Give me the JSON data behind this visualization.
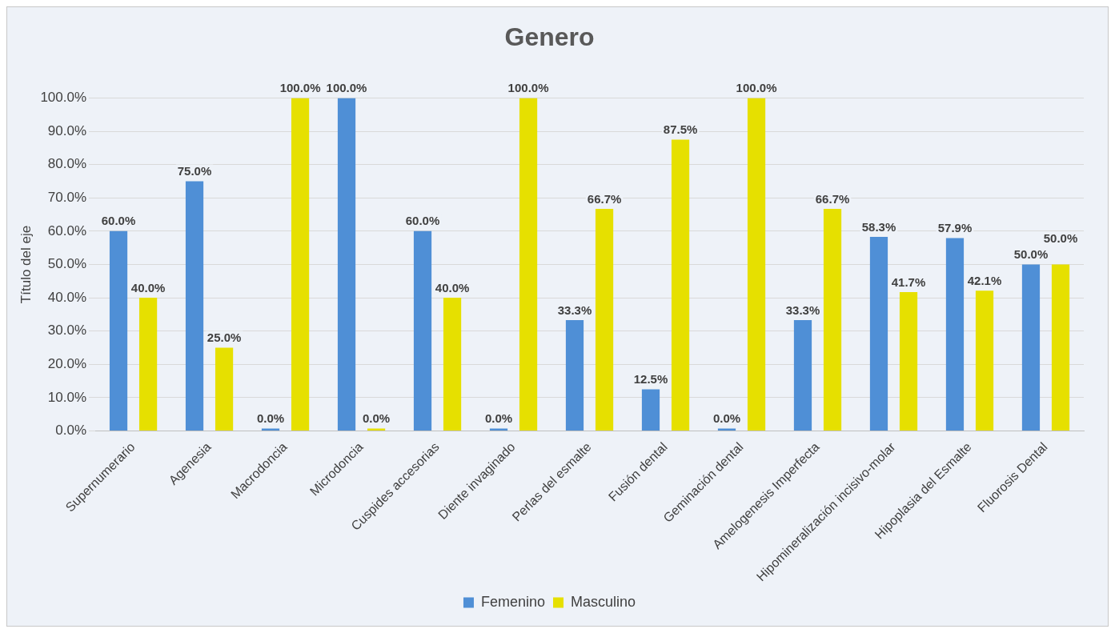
{
  "chart_data": {
    "type": "bar",
    "title": "Genero",
    "ylabel": "Título del eje",
    "categories": [
      "Supernumerario",
      "Agenesia",
      "Macrodoncia",
      "Microdoncia",
      "Cuspides accesorias",
      "Diente invaginado",
      "Perlas del esmalte",
      "Fusión dental",
      "Geminación dental",
      "Amelogenesis Imperfecta",
      "Hipomineralización incisivo-molar",
      "Hipoplasia del Esmalte",
      "Fluorosis Dental"
    ],
    "series": [
      {
        "name": "Femenino",
        "color": "#4f8fd6",
        "values": [
          60,
          75,
          0,
          100,
          60,
          0,
          33.3,
          12.5,
          0,
          33.3,
          58.3,
          57.9,
          50
        ],
        "value_labels": [
          "60.0%",
          "75.0%",
          "0.0%",
          "100.0%",
          "60.0%",
          "0.0%",
          "33.3%",
          "12.5%",
          "0.0%",
          "33.3%",
          "58.3%",
          "57.9%",
          "50.0%"
        ]
      },
      {
        "name": "Masculino",
        "color": "#e6e000",
        "values": [
          40,
          25,
          100,
          0,
          40,
          100,
          66.7,
          87.5,
          100,
          66.7,
          41.7,
          42.1,
          50
        ],
        "value_labels": [
          "40.0%",
          "25.0%",
          "100.0%",
          "0.0%",
          "40.0%",
          "100.0%",
          "66.7%",
          "87.5%",
          "100.0%",
          "66.7%",
          "41.7%",
          "42.1%",
          "50.0%"
        ]
      }
    ],
    "ylim": [
      0,
      100
    ],
    "yticks": [
      {
        "value": 0,
        "label": "0.0%"
      },
      {
        "value": 10,
        "label": "10.0%"
      },
      {
        "value": 20,
        "label": "20.0%"
      },
      {
        "value": 30,
        "label": "30.0%"
      },
      {
        "value": 40,
        "label": "40.0%"
      },
      {
        "value": 50,
        "label": "50.0%"
      },
      {
        "value": 60,
        "label": "60.0%"
      },
      {
        "value": 70,
        "label": "70.0%"
      },
      {
        "value": 80,
        "label": "80.0%"
      },
      {
        "value": 90,
        "label": "90.0%"
      },
      {
        "value": 100,
        "label": "100.0%"
      }
    ],
    "grid": "y",
    "legend": "bottom"
  }
}
